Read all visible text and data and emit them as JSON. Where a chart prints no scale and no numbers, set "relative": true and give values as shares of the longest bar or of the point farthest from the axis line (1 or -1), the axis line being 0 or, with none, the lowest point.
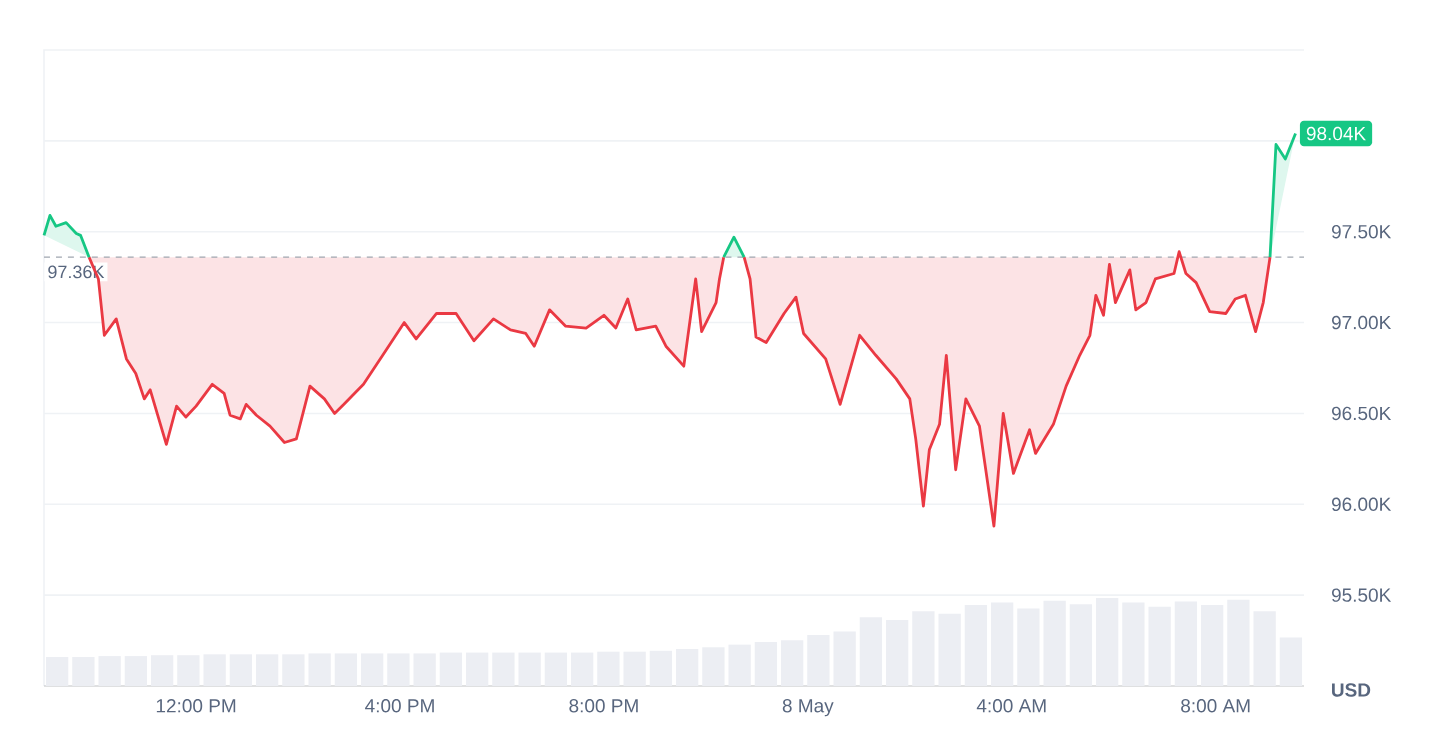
{
  "chart_data": [
    {
      "type": "line",
      "xlim": [
        "--05-07T09:01",
        "--05-08T09:44"
      ],
      "ylim": [
        95,
        98.5
      ],
      "xticks": [
        {
          "value": "--05-07T12:00",
          "label": "12:00 PM"
        },
        {
          "value": "--05-07T16:00",
          "label": "4:00 PM"
        },
        {
          "value": "--05-07T20:00",
          "label": "8:00 PM"
        },
        {
          "value": "--05-08T00:00",
          "label": "8 May"
        },
        {
          "value": "--05-08T04:00",
          "label": "4:00 AM"
        },
        {
          "value": "--05-08T08:00",
          "label": "8:00 AM"
        }
      ],
      "yticks": [
        {
          "value": 95.5,
          "label": "95.50K"
        },
        {
          "value": 96,
          "label": "96.00K"
        },
        {
          "value": 96.5,
          "label": "96.50K"
        },
        {
          "value": 97,
          "label": "97.00K"
        },
        {
          "value": 97.5,
          "label": "97.50K"
        },
        {
          "value": 98,
          "label": null
        }
      ],
      "grid": "y",
      "ref_lines": [
        {
          "axis": "y",
          "value": 97.36,
          "label": "97.36K",
          "color": "#a0a6b0",
          "line_style": "dashed"
        }
      ],
      "annotations": [
        {
          "text": "98.04K",
          "x": "--05-08T09:34",
          "y": 98.04
        },
        "USD"
      ],
      "series": [
        {
          "type": "area",
          "color": "#ea3943",
          "x": [
            "--05-07T09:54",
            "--05-07T10:05",
            "--05-07T10:12",
            "--05-07T10:26",
            "--05-07T10:38",
            "--05-07T10:49",
            "--05-07T10:59",
            "--05-07T11:06",
            "--05-07T11:25",
            "--05-07T11:37",
            "--05-07T11:48",
            "--05-07T12:00",
            "--05-07T12:19",
            "--05-07T12:33",
            "--05-07T12:40",
            "--05-07T12:52",
            "--05-07T12:59",
            "--05-07T13:11",
            "--05-07T13:27",
            "--05-07T13:44",
            "--05-07T13:58",
            "--05-07T14:14",
            "--05-07T14:31",
            "--05-07T14:43",
            "--05-07T14:54",
            "--05-07T15:17",
            "--05-07T15:41",
            "--05-07T16:05",
            "--05-07T16:19",
            "--05-07T16:43",
            "--05-07T17:06",
            "--05-07T17:27",
            "--05-07T17:50",
            "--05-07T18:10",
            "--05-07T18:28",
            "--05-07T18:38",
            "--05-07T18:56",
            "--05-07T19:15",
            "--05-07T19:39",
            "--05-07T20:00",
            "--05-07T20:14",
            "--05-07T20:28",
            "--05-07T20:38",
            "--05-07T21:01",
            "--05-07T21:13",
            "--05-07T21:34",
            "--05-07T21:48",
            "--05-07T21:55",
            "--05-07T22:12",
            "--05-07T22:16",
            "--05-07T22:21",
            "--05-07T22:33",
            "--05-07T22:45",
            "--05-07T22:52",
            "--05-07T22:59",
            "--05-07T23:11",
            "--05-07T23:32",
            "--05-07T23:46",
            "--05-07T23:55",
            "--05-08T00:21",
            "--05-08T00:38",
            "--05-08T01:01",
            "--05-08T01:20",
            "--05-08T01:44",
            "--05-08T02:00",
            "--05-08T02:07",
            "--05-08T02:16",
            "--05-08T02:23",
            "--05-08T02:35",
            "--05-08T02:43",
            "--05-08T02:54",
            "--05-08T03:06",
            "--05-08T03:22",
            "--05-08T03:39",
            "--05-08T03:50",
            "--05-08T04:02",
            "--05-08T04:21",
            "--05-08T04:28",
            "--05-08T04:49",
            "--05-08T05:04",
            "--05-08T05:20",
            "--05-08T05:32",
            "--05-08T05:39",
            "--05-08T05:48",
            "--05-08T05:55",
            "--05-08T06:02",
            "--05-08T06:19",
            "--05-08T06:26",
            "--05-08T06:38",
            "--05-08T06:49",
            "--05-08T07:11",
            "--05-08T07:17",
            "--05-08T07:25",
            "--05-08T07:37",
            "--05-08T07:53",
            "--05-08T08:12",
            "--05-08T08:23",
            "--05-08T08:35",
            "--05-08T08:47",
            "--05-08T08:56",
            "--05-08T09:04"
          ],
          "values": [
            97.36,
            97.24,
            96.93,
            97.02,
            96.8,
            96.72,
            96.58,
            96.63,
            96.33,
            96.54,
            96.48,
            96.54,
            96.66,
            96.61,
            96.49,
            96.47,
            96.55,
            96.49,
            96.43,
            96.34,
            96.36,
            96.65,
            96.58,
            96.5,
            96.55,
            96.66,
            96.83,
            97.0,
            96.91,
            97.05,
            97.05,
            96.9,
            97.02,
            96.96,
            96.94,
            96.87,
            97.07,
            96.98,
            96.97,
            97.04,
            96.97,
            97.13,
            96.96,
            96.98,
            96.87,
            96.76,
            97.24,
            96.95,
            97.11,
            97.24,
            97.36,
            null,
            97.36,
            97.24,
            96.92,
            96.89,
            97.05,
            97.14,
            96.94,
            96.8,
            96.55,
            96.93,
            96.82,
            96.69,
            96.58,
            96.36,
            95.99,
            96.3,
            96.44,
            96.82,
            96.19,
            96.58,
            96.43,
            95.88,
            96.5,
            96.17,
            96.41,
            96.28,
            96.44,
            96.65,
            96.82,
            96.93,
            97.15,
            97.04,
            97.32,
            97.11,
            97.29,
            97.07,
            97.11,
            97.24,
            97.27,
            97.39,
            97.27,
            97.22,
            97.06,
            97.05,
            97.13,
            97.15,
            96.95,
            97.11,
            97.36
          ]
        },
        {
          "type": "area",
          "color": "#16c784",
          "x": [
            "--05-07T09:01",
            "--05-07T09:08",
            "--05-07T09:15",
            "--05-07T09:27",
            "--05-07T09:39",
            "--05-07T09:44",
            "--05-07T09:54",
            "--05-07T12:00",
            "--05-07T22:21",
            "--05-07T22:33",
            "--05-07T22:45",
            "--05-08T08:00",
            "--05-08T09:04",
            "--05-08T09:11",
            "--05-08T09:22",
            "--05-08T09:34"
          ],
          "values": [
            97.48,
            97.59,
            97.53,
            97.55,
            97.49,
            97.48,
            97.36,
            null,
            97.36,
            97.47,
            97.36,
            null,
            97.36,
            97.98,
            97.9,
            98.04
          ]
        }
      ]
    },
    {
      "type": "bar",
      "relative": true,
      "color": "#eceef3",
      "categories": [
        null,
        null,
        null,
        null,
        null,
        null,
        null,
        null,
        null,
        null,
        null,
        null,
        null,
        null,
        null,
        null,
        null,
        null,
        null,
        null,
        null,
        null,
        null,
        null,
        null,
        null,
        null,
        null,
        null,
        null,
        null,
        null,
        null,
        null,
        null,
        null,
        null,
        null,
        null,
        null,
        null,
        null,
        null,
        null,
        null,
        null,
        null,
        null
      ],
      "values": [
        0.33,
        0.33,
        0.34,
        0.34,
        0.35,
        0.35,
        0.36,
        0.36,
        0.36,
        0.36,
        0.37,
        0.37,
        0.37,
        0.37,
        0.37,
        0.38,
        0.38,
        0.38,
        0.38,
        0.38,
        0.38,
        0.39,
        0.39,
        0.4,
        0.42,
        0.44,
        0.47,
        0.5,
        0.52,
        0.58,
        0.62,
        0.78,
        0.75,
        0.85,
        0.82,
        0.92,
        0.95,
        0.88,
        0.97,
        0.93,
        1.0,
        0.95,
        0.9,
        0.96,
        0.92,
        0.98,
        0.85,
        0.55
      ]
    }
  ]
}
